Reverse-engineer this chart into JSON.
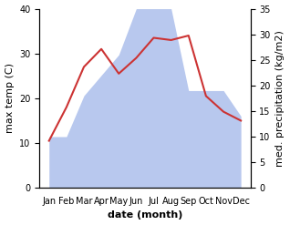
{
  "months": [
    "Jan",
    "Feb",
    "Mar",
    "Apr",
    "May",
    "Jun",
    "Jul",
    "Aug",
    "Sep",
    "Oct",
    "Nov",
    "Dec"
  ],
  "temperature": [
    10.5,
    18.0,
    27.0,
    31.0,
    25.5,
    29.0,
    33.5,
    33.0,
    34.0,
    20.5,
    17.0,
    15.0
  ],
  "precipitation": [
    10.0,
    10.0,
    18.0,
    22.0,
    26.0,
    35.0,
    35.0,
    35.0,
    19.0,
    19.0,
    19.0,
    14.0
  ],
  "temp_color": "#cc3333",
  "precip_color": "#b8c8ee",
  "bg_color": "#ffffff",
  "left_ylim": [
    0,
    40
  ],
  "right_ylim": [
    0,
    35
  ],
  "left_yticks": [
    0,
    10,
    20,
    30,
    40
  ],
  "right_yticks": [
    0,
    5,
    10,
    15,
    20,
    25,
    30,
    35
  ],
  "xlabel": "date (month)",
  "ylabel_left": "max temp (C)",
  "ylabel_right": "med. precipitation (kg/m2)",
  "label_fontsize": 8,
  "tick_fontsize": 7
}
